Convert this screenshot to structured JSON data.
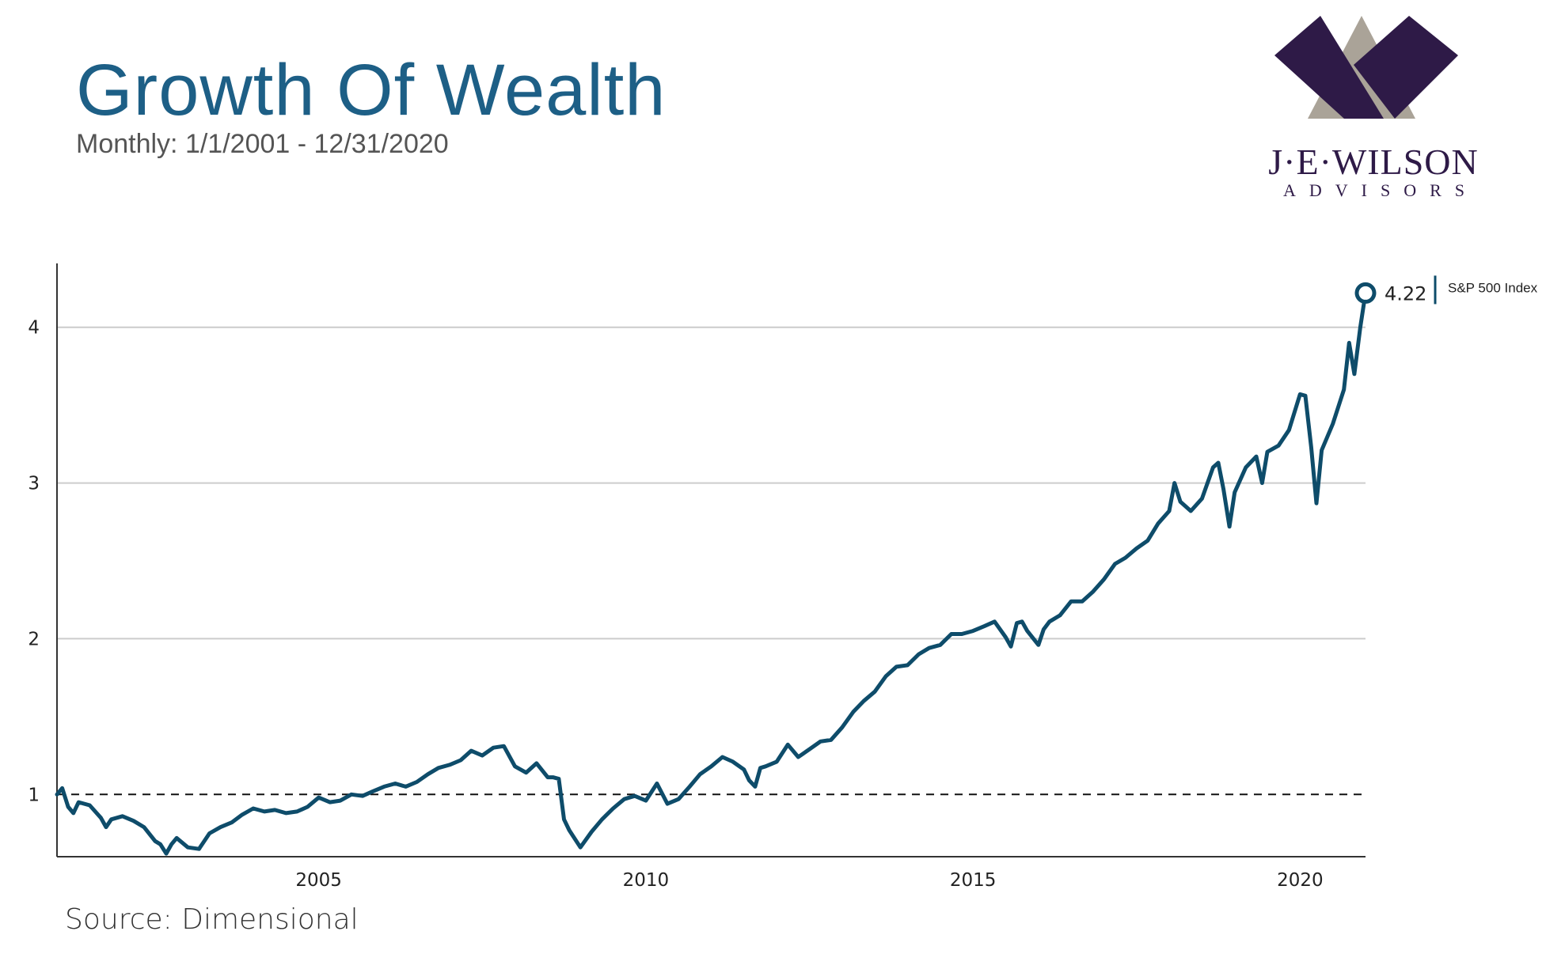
{
  "header": {
    "title": "Growth Of Wealth",
    "subtitle": "Monthly: 1/1/2001 - 12/31/2020"
  },
  "logo": {
    "name": "J·E·WILSON",
    "tagline": "ADVISORS",
    "colors": {
      "primary": "#2e1a47",
      "secondary": "#aaa398"
    }
  },
  "footer": {
    "source": "Source: Dimensional"
  },
  "colors": {
    "line": "#0e4c6a",
    "grid": "#cccccc",
    "reference": "#111111"
  },
  "chart_data": {
    "type": "line",
    "title": "Growth Of Wealth",
    "subtitle": "Monthly: 1/1/2001 - 12/31/2020",
    "xlabel": "",
    "ylabel": "",
    "xlim": [
      2001.0,
      2021.0
    ],
    "ylim": [
      0.6,
      4.4
    ],
    "x_ticks": [
      2005,
      2010,
      2015,
      2020
    ],
    "x_tick_labels": [
      "2005",
      "2010",
      "2015",
      "2020"
    ],
    "y_ticks": [
      1,
      2,
      3,
      4
    ],
    "y_tick_labels": [
      "1",
      "2",
      "3",
      "4"
    ],
    "grid": "horizontal",
    "reference_line": {
      "y": 1,
      "style": "dashed"
    },
    "end_value_label": "4.22",
    "legend_position": "right",
    "series": [
      {
        "name": "S&P 500 Index",
        "color": "#0e4c6a",
        "x": [
          2001.0,
          2001.08,
          2001.17,
          2001.25,
          2001.33,
          2001.5,
          2001.67,
          2001.75,
          2001.83,
          2002.0,
          2002.17,
          2002.33,
          2002.5,
          2002.58,
          2002.67,
          2002.75,
          2002.83,
          2003.0,
          2003.17,
          2003.33,
          2003.5,
          2003.67,
          2003.83,
          2004.0,
          2004.17,
          2004.33,
          2004.5,
          2004.67,
          2004.83,
          2005.0,
          2005.17,
          2005.33,
          2005.5,
          2005.67,
          2005.83,
          2006.0,
          2006.17,
          2006.33,
          2006.5,
          2006.67,
          2006.83,
          2007.0,
          2007.17,
          2007.33,
          2007.5,
          2007.67,
          2007.83,
          2008.0,
          2008.17,
          2008.33,
          2008.5,
          2008.58,
          2008.67,
          2008.75,
          2008.83,
          2009.0,
          2009.17,
          2009.33,
          2009.5,
          2009.67,
          2009.83,
          2010.0,
          2010.17,
          2010.33,
          2010.5,
          2010.67,
          2010.83,
          2011.0,
          2011.17,
          2011.33,
          2011.5,
          2011.58,
          2011.67,
          2011.75,
          2011.83,
          2012.0,
          2012.17,
          2012.33,
          2012.5,
          2012.67,
          2012.83,
          2013.0,
          2013.17,
          2013.33,
          2013.5,
          2013.67,
          2013.83,
          2014.0,
          2014.17,
          2014.33,
          2014.5,
          2014.67,
          2014.83,
          2015.0,
          2015.17,
          2015.33,
          2015.5,
          2015.58,
          2015.67,
          2015.75,
          2015.83,
          2016.0,
          2016.08,
          2016.17,
          2016.33,
          2016.5,
          2016.67,
          2016.83,
          2017.0,
          2017.17,
          2017.33,
          2017.5,
          2017.67,
          2017.83,
          2018.0,
          2018.08,
          2018.17,
          2018.33,
          2018.5,
          2018.67,
          2018.75,
          2018.83,
          2018.92,
          2019.0,
          2019.17,
          2019.33,
          2019.42,
          2019.5,
          2019.67,
          2019.83,
          2020.0,
          2020.08,
          2020.17,
          2020.25,
          2020.33,
          2020.5,
          2020.67,
          2020.75,
          2020.83,
          2020.92,
          2021.0
        ],
        "values": [
          1.0,
          1.04,
          0.92,
          0.88,
          0.95,
          0.93,
          0.85,
          0.79,
          0.84,
          0.86,
          0.83,
          0.79,
          0.7,
          0.68,
          0.62,
          0.68,
          0.72,
          0.66,
          0.65,
          0.75,
          0.79,
          0.82,
          0.87,
          0.91,
          0.89,
          0.9,
          0.88,
          0.89,
          0.92,
          0.98,
          0.95,
          0.96,
          1.0,
          0.99,
          1.02,
          1.05,
          1.07,
          1.05,
          1.08,
          1.13,
          1.17,
          1.19,
          1.22,
          1.28,
          1.25,
          1.3,
          1.31,
          1.18,
          1.14,
          1.2,
          1.11,
          1.11,
          1.1,
          0.84,
          0.77,
          0.66,
          0.76,
          0.84,
          0.91,
          0.97,
          0.99,
          0.96,
          1.07,
          0.94,
          0.97,
          1.05,
          1.13,
          1.18,
          1.24,
          1.21,
          1.16,
          1.09,
          1.05,
          1.17,
          1.18,
          1.21,
          1.32,
          1.24,
          1.29,
          1.34,
          1.35,
          1.43,
          1.53,
          1.6,
          1.66,
          1.76,
          1.82,
          1.83,
          1.9,
          1.94,
          1.96,
          2.03,
          2.03,
          2.05,
          2.08,
          2.11,
          2.01,
          1.95,
          2.1,
          2.11,
          2.05,
          1.96,
          2.06,
          2.11,
          2.15,
          2.24,
          2.24,
          2.3,
          2.38,
          2.48,
          2.52,
          2.58,
          2.63,
          2.74,
          2.82,
          3.0,
          2.88,
          2.82,
          2.9,
          3.1,
          3.13,
          2.96,
          2.72,
          2.94,
          3.1,
          3.17,
          3.0,
          3.2,
          3.24,
          3.34,
          3.57,
          3.56,
          3.23,
          2.87,
          3.21,
          3.38,
          3.6,
          3.9,
          3.7,
          4.0,
          4.22
        ]
      }
    ]
  }
}
